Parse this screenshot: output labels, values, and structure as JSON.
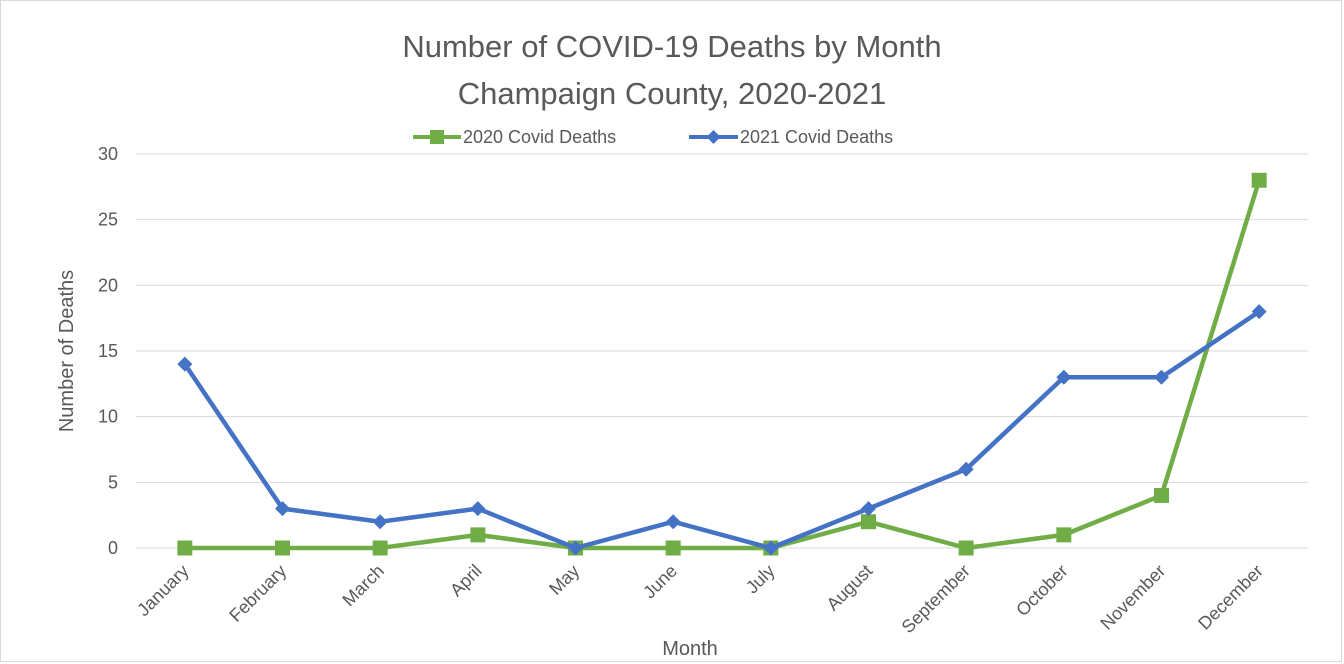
{
  "chart_data": {
    "type": "line",
    "title": "Number of COVID-19 Deaths by Month",
    "subtitle": "Champaign County, 2020-2021",
    "xlabel": "Month",
    "ylabel": "Number of Deaths",
    "categories": [
      "January",
      "February",
      "March",
      "April",
      "May",
      "June",
      "July",
      "August",
      "September",
      "October",
      "November",
      "December"
    ],
    "series": [
      {
        "name": "2020 Covid Deaths",
        "color": "#70ad47",
        "marker": "square",
        "values": [
          0,
          0,
          0,
          1,
          0,
          0,
          0,
          2,
          0,
          1,
          4,
          28
        ]
      },
      {
        "name": "2021 Covid Deaths",
        "color": "#4472c4",
        "marker": "diamond",
        "values": [
          14,
          3,
          2,
          3,
          0,
          2,
          0,
          3,
          6,
          13,
          13,
          18
        ]
      }
    ],
    "ylim": [
      0,
      30
    ],
    "yticks": [
      0,
      5,
      10,
      15,
      20,
      25,
      30
    ],
    "grid": true,
    "legend_position": "top"
  }
}
